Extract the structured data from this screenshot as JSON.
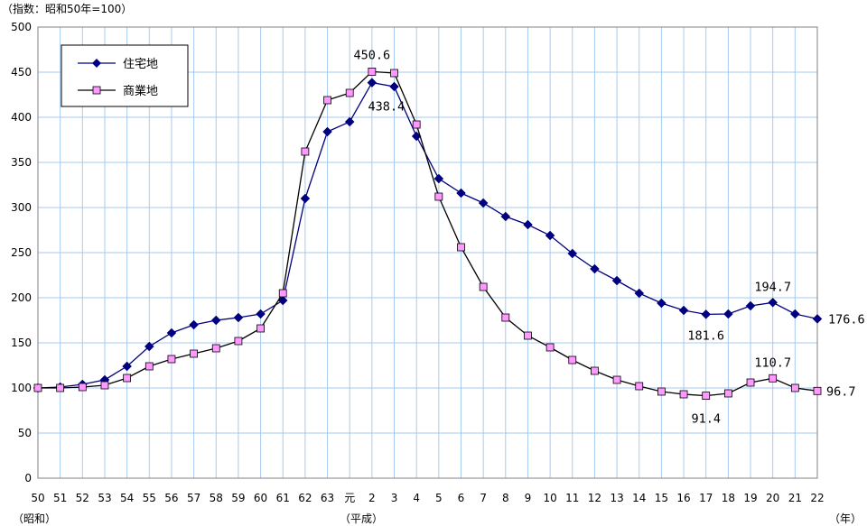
{
  "chart_data": {
    "type": "line",
    "unit_label": "（指数：昭和50年=100）",
    "x_unit": "（年）",
    "era_labels": [
      "（昭和）",
      "（平成）"
    ],
    "categories": [
      "50",
      "51",
      "52",
      "53",
      "54",
      "55",
      "56",
      "57",
      "58",
      "59",
      "60",
      "61",
      "62",
      "63",
      "元",
      "2",
      "3",
      "4",
      "5",
      "6",
      "7",
      "8",
      "9",
      "10",
      "11",
      "12",
      "13",
      "14",
      "15",
      "16",
      "17",
      "18",
      "19",
      "20",
      "21",
      "22"
    ],
    "ylim": [
      0,
      500
    ],
    "yticks": [
      0,
      50,
      100,
      150,
      200,
      250,
      300,
      350,
      400,
      450,
      500
    ],
    "grid": true,
    "legend_position": "top-left",
    "series": [
      {
        "name": "住宅地",
        "color": "#000080",
        "marker": "diamond",
        "values": [
          100,
          101,
          104,
          109,
          124,
          146,
          161,
          170,
          175,
          178,
          182,
          197,
          310,
          384,
          395,
          438.4,
          434,
          379,
          332,
          316,
          305,
          290,
          281,
          269,
          249,
          232,
          219,
          205,
          194,
          186,
          181.6,
          182,
          191,
          194.7,
          182,
          176.6
        ]
      },
      {
        "name": "商業地",
        "color": "#ff99ff",
        "marker": "square",
        "values": [
          100,
          100,
          101,
          103,
          111,
          124,
          132,
          138,
          144,
          152,
          166,
          205,
          362,
          419,
          427,
          450.6,
          449,
          392,
          312,
          256,
          212,
          178,
          158,
          145,
          131,
          119,
          109,
          102,
          96,
          93,
          91.4,
          94,
          106,
          110.7,
          100,
          96.7
        ]
      }
    ],
    "annotations": [
      {
        "text": "450.6",
        "series": 1,
        "index": 15
      },
      {
        "text": "438.4",
        "series": 0,
        "index": 15
      },
      {
        "text": "194.7",
        "series": 0,
        "index": 33
      },
      {
        "text": "181.6",
        "series": 0,
        "index": 30
      },
      {
        "text": "176.6",
        "series": 0,
        "index": 35
      },
      {
        "text": "110.7",
        "series": 1,
        "index": 33
      },
      {
        "text": "91.4",
        "series": 1,
        "index": 30
      },
      {
        "text": "96.7",
        "series": 1,
        "index": 35
      }
    ]
  }
}
